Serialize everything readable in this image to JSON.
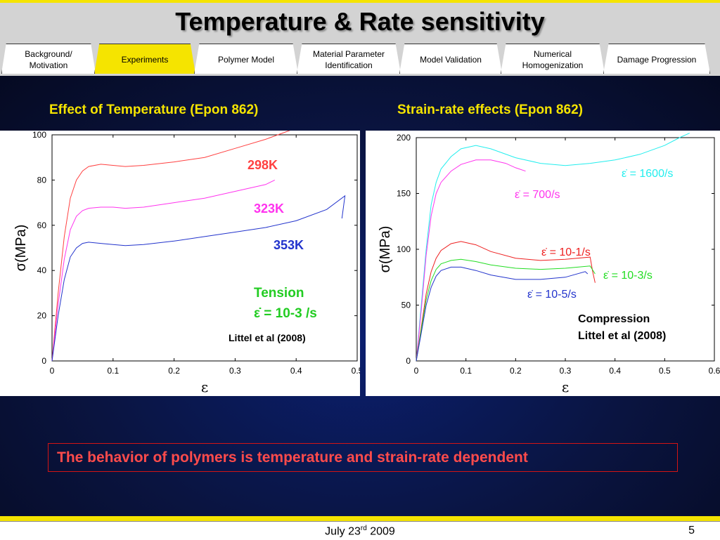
{
  "slide": {
    "title": "Temperature & Rate sensitivity",
    "date_prefix": "July 23",
    "date_sup": "rd",
    "date_suffix": " 2009",
    "page_number": "5",
    "conclusion": "The behavior of polymers is temperature and strain-rate dependent"
  },
  "tabs": [
    {
      "label": "Background/\nMotivation",
      "active": false
    },
    {
      "label": "Experiments",
      "active": true
    },
    {
      "label": "Polymer Model",
      "active": false
    },
    {
      "label": "Material Parameter\nIdentification",
      "active": false
    },
    {
      "label": "Model Validation",
      "active": false
    },
    {
      "label": "Numerical\nHomogenization",
      "active": false
    },
    {
      "label": "Damage Progression",
      "active": false
    }
  ],
  "left_heading": "Effect of Temperature (Epon 862)",
  "right_heading": "Strain-rate effects (Epon 862)",
  "colors": {
    "red": "#ff4040",
    "magenta": "#ff33ee",
    "blue": "#2233cc",
    "cyan": "#22eeee",
    "green": "#22dd22",
    "accent": "#f5e400"
  },
  "chart_data": [
    {
      "type": "line",
      "xlabel": "ε",
      "ylabel": "σ(MPa)",
      "xlim": [
        0,
        0.5
      ],
      "ylim": [
        0,
        100
      ],
      "xticks": [
        0,
        0.1,
        0.2,
        0.3,
        0.4,
        0.5
      ],
      "yticks": [
        0,
        20,
        40,
        60,
        80,
        100
      ],
      "series": [
        {
          "name": "298K",
          "color": "#ff4040",
          "x": [
            0,
            0.01,
            0.02,
            0.03,
            0.04,
            0.05,
            0.06,
            0.08,
            0.1,
            0.12,
            0.15,
            0.2,
            0.25,
            0.3,
            0.35,
            0.39
          ],
          "y": [
            0,
            30,
            55,
            72,
            80,
            84,
            86,
            87,
            86.5,
            86,
            86.5,
            88,
            90,
            94,
            98,
            102
          ]
        },
        {
          "name": "323K",
          "color": "#ff33ee",
          "x": [
            0,
            0.01,
            0.02,
            0.03,
            0.04,
            0.05,
            0.06,
            0.08,
            0.1,
            0.12,
            0.15,
            0.2,
            0.25,
            0.3,
            0.35,
            0.365
          ],
          "y": [
            0,
            25,
            45,
            58,
            64,
            66.5,
            67.5,
            68,
            68,
            67.5,
            68,
            70,
            72,
            75,
            78,
            80
          ]
        },
        {
          "name": "353K",
          "color": "#2233cc",
          "x": [
            0,
            0.01,
            0.02,
            0.03,
            0.04,
            0.05,
            0.06,
            0.08,
            0.1,
            0.12,
            0.15,
            0.2,
            0.25,
            0.3,
            0.35,
            0.4,
            0.45,
            0.48,
            0.475
          ],
          "y": [
            0,
            20,
            36,
            46,
            50,
            52,
            52.5,
            52,
            51.5,
            51,
            51.5,
            53,
            55,
            57,
            59,
            62,
            67,
            73,
            63
          ]
        }
      ],
      "annotations": [
        "298K",
        "323K",
        "353K",
        "Tension",
        "ε̇ = 10-3 /s",
        "Littel et al (2008)"
      ]
    },
    {
      "type": "line",
      "xlabel": "ε",
      "ylabel": "σ(MPa)",
      "xlim": [
        0,
        0.6
      ],
      "ylim": [
        0,
        200
      ],
      "xticks": [
        0,
        0.1,
        0.2,
        0.3,
        0.4,
        0.5,
        0.6
      ],
      "yticks": [
        0,
        50,
        100,
        150,
        200
      ],
      "series": [
        {
          "name": "ε̇ = 1600/s",
          "color": "#22eeee",
          "x": [
            0,
            0.01,
            0.02,
            0.03,
            0.04,
            0.05,
            0.07,
            0.09,
            0.12,
            0.15,
            0.2,
            0.25,
            0.3,
            0.35,
            0.4,
            0.45,
            0.5,
            0.53,
            0.55
          ],
          "y": [
            0,
            50,
            100,
            140,
            160,
            172,
            183,
            190,
            193,
            190,
            182,
            177,
            175,
            177,
            180,
            185,
            193,
            200,
            204
          ]
        },
        {
          "name": "ε̇ = 700/s",
          "color": "#ff33ee",
          "x": [
            0,
            0.01,
            0.02,
            0.03,
            0.04,
            0.05,
            0.07,
            0.09,
            0.12,
            0.15,
            0.18,
            0.2,
            0.22
          ],
          "y": [
            0,
            45,
            95,
            130,
            150,
            160,
            170,
            176,
            180,
            180,
            177,
            173,
            170
          ]
        },
        {
          "name": "ε̇ = 10-1/s",
          "color": "#ee2020",
          "x": [
            0,
            0.01,
            0.02,
            0.03,
            0.04,
            0.05,
            0.07,
            0.09,
            0.12,
            0.15,
            0.2,
            0.25,
            0.3,
            0.35,
            0.355,
            0.36
          ],
          "y": [
            0,
            30,
            60,
            80,
            92,
            99,
            105,
            107,
            104,
            98,
            92,
            90,
            91,
            93,
            80,
            70
          ]
        },
        {
          "name": "ε̇ = 10-3/s",
          "color": "#22dd22",
          "x": [
            0,
            0.01,
            0.02,
            0.03,
            0.04,
            0.05,
            0.07,
            0.09,
            0.12,
            0.15,
            0.2,
            0.25,
            0.3,
            0.35,
            0.36
          ],
          "y": [
            0,
            28,
            55,
            72,
            82,
            87,
            90,
            91,
            89,
            86,
            83,
            82,
            83,
            85,
            78
          ]
        },
        {
          "name": "ε̇ = 10-5/s",
          "color": "#2233cc",
          "x": [
            0,
            0.01,
            0.02,
            0.03,
            0.04,
            0.05,
            0.07,
            0.09,
            0.12,
            0.15,
            0.2,
            0.25,
            0.3,
            0.34,
            0.345
          ],
          "y": [
            0,
            25,
            50,
            66,
            76,
            81,
            84,
            84,
            81,
            77,
            73,
            73,
            75,
            80,
            78
          ]
        }
      ],
      "annotations": [
        "Compression",
        "Littel et al (2008)"
      ]
    }
  ]
}
